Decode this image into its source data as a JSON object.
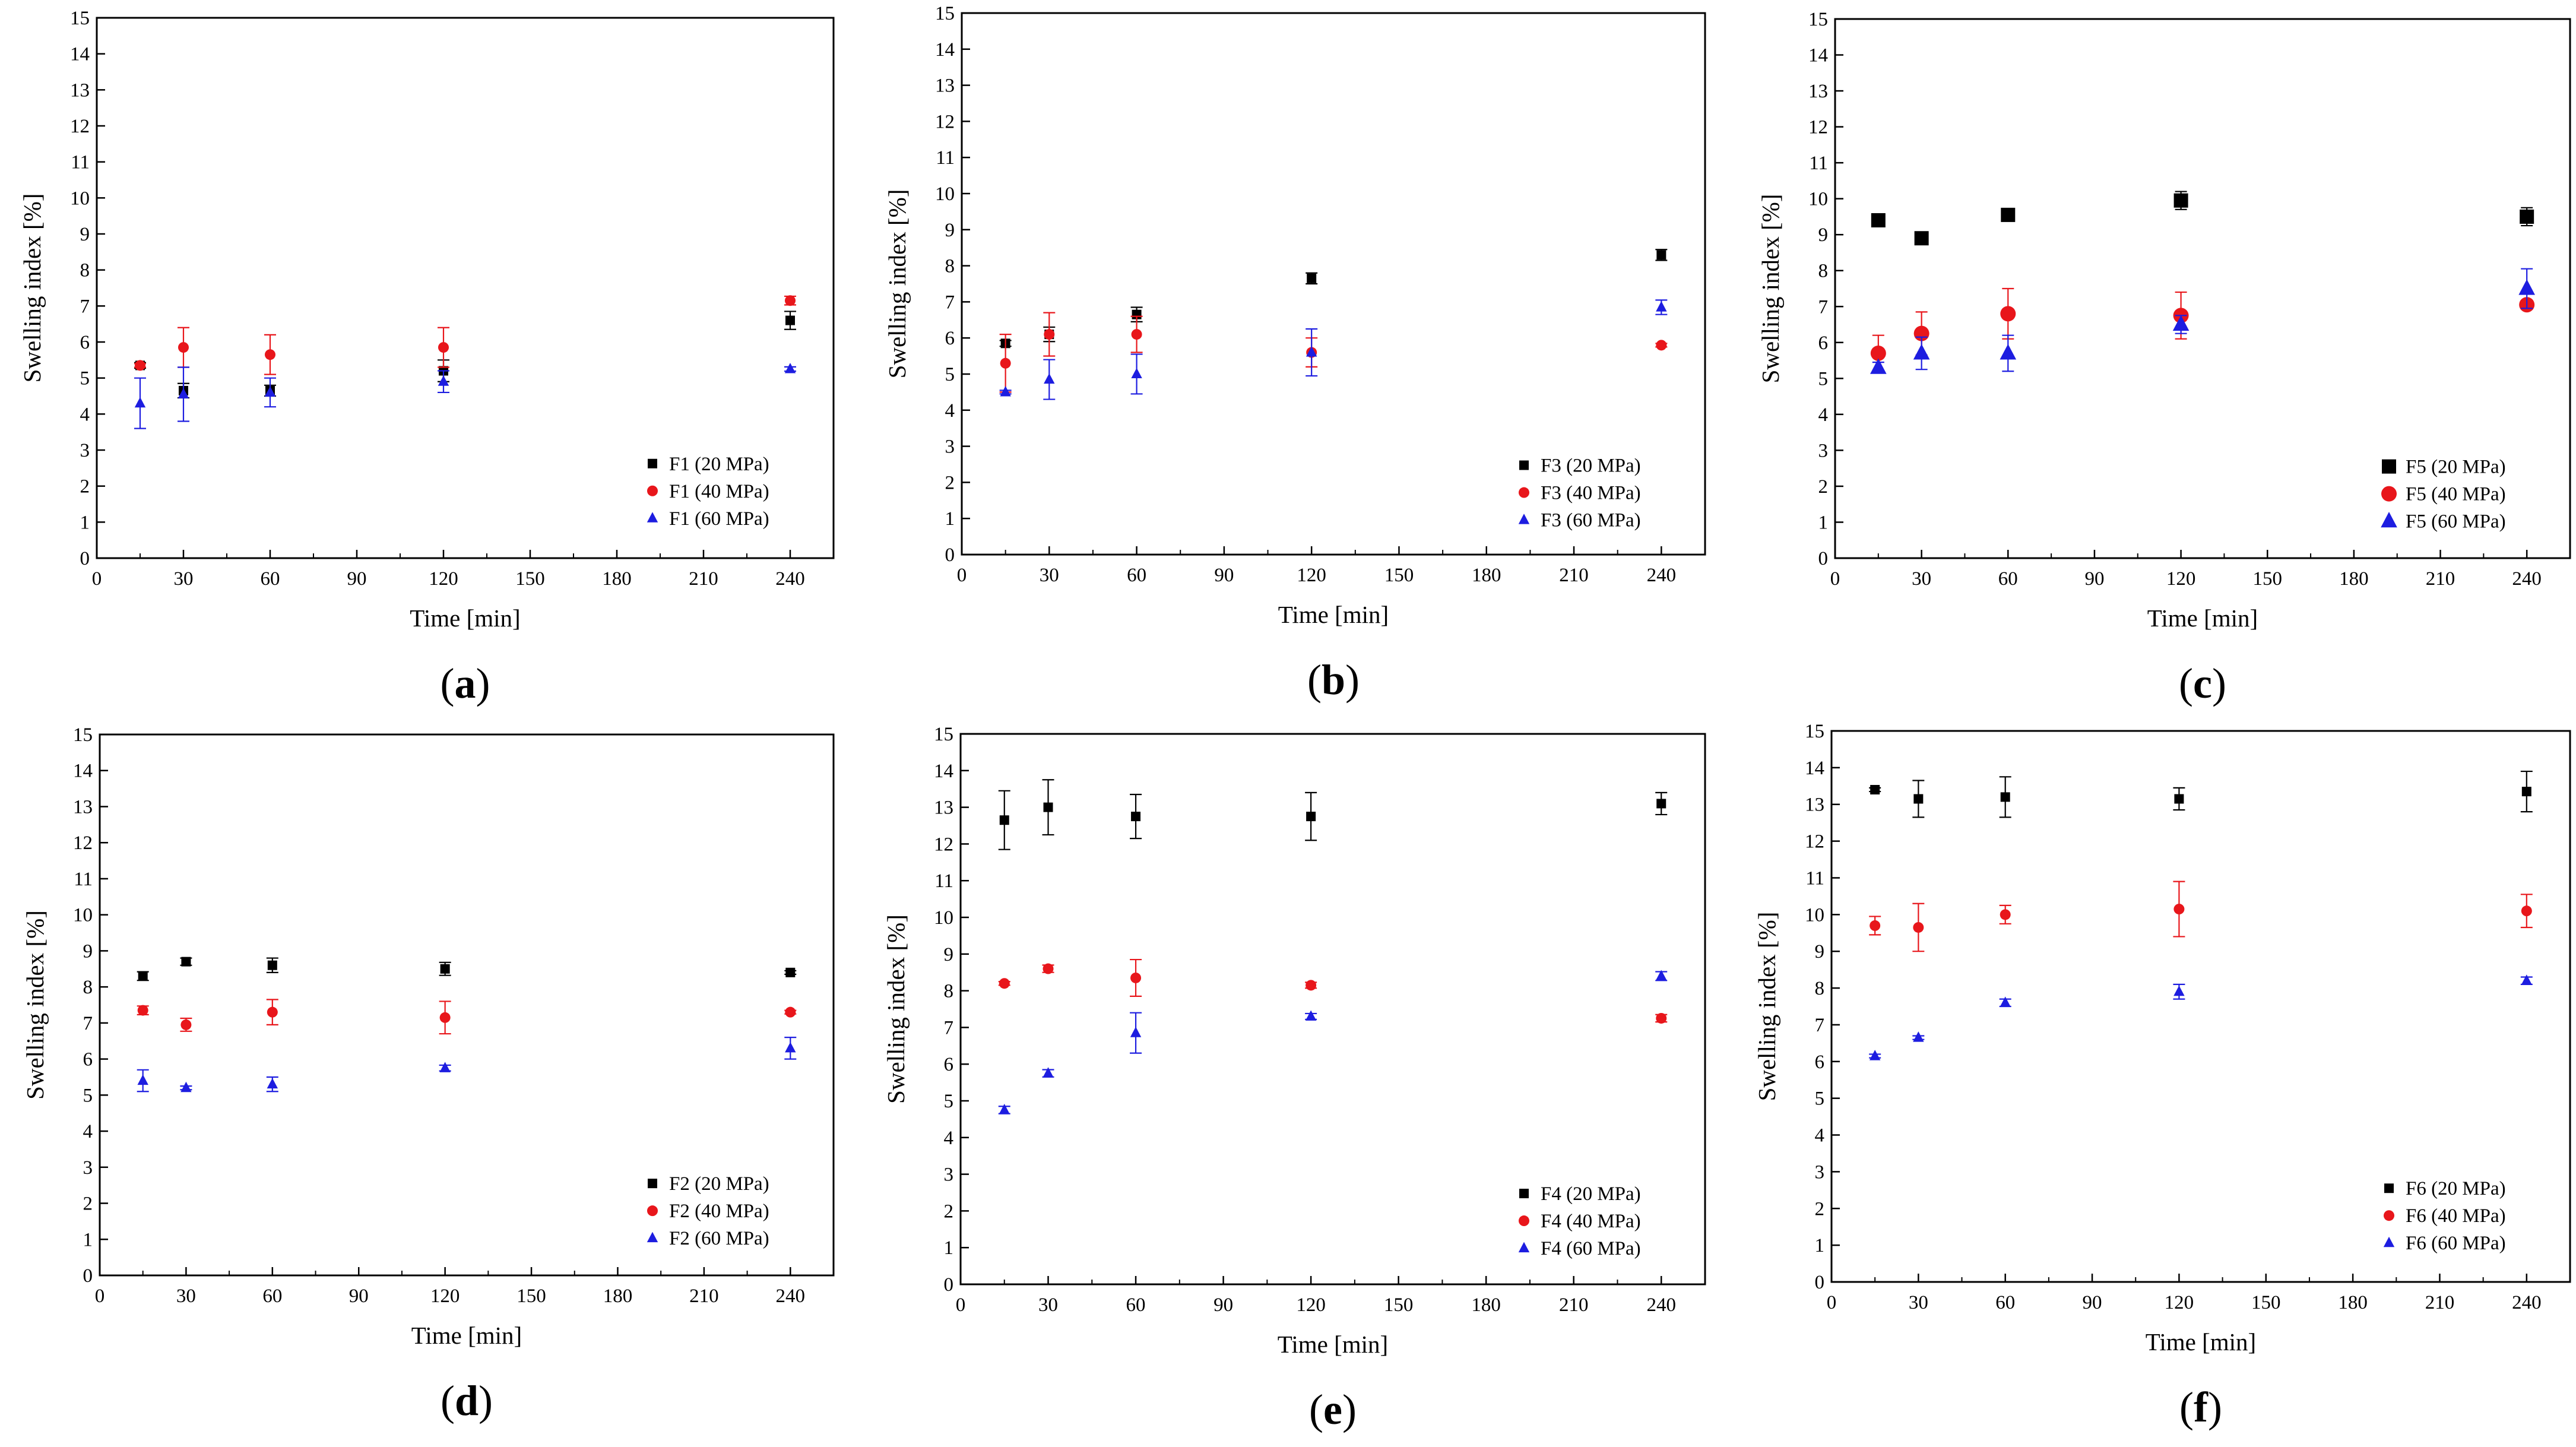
{
  "chart_data": [
    {
      "panel": "(a)",
      "panel_letter": "a",
      "type": "scatter",
      "xlabel": "Time [min]",
      "ylabel": "Swelling index [%]",
      "xlim": [
        0,
        255
      ],
      "ylim": [
        0,
        15
      ],
      "xticks": [
        0,
        30,
        60,
        90,
        120,
        150,
        180,
        210,
        240
      ],
      "yticks": [
        0,
        1,
        2,
        3,
        4,
        5,
        6,
        7,
        8,
        9,
        10,
        11,
        12,
        13,
        14,
        15
      ],
      "x": [
        15,
        30,
        60,
        120,
        240
      ],
      "series": [
        {
          "name": "F1 (20 MPa)",
          "marker": "square",
          "color": "#000000",
          "values": [
            5.35,
            4.65,
            4.65,
            5.2,
            6.6
          ],
          "errors": [
            0.08,
            0.2,
            0.15,
            0.3,
            0.25
          ]
        },
        {
          "name": "F1 (40 MPa)",
          "marker": "circle",
          "color": "#e8161b",
          "values": [
            5.35,
            5.85,
            5.65,
            5.85,
            7.15
          ],
          "errors": [
            0.05,
            0.55,
            0.55,
            0.55,
            0.12
          ]
        },
        {
          "name": "F1 (60 MPa)",
          "marker": "triangle",
          "color": "#1d1de0",
          "values": [
            4.3,
            4.55,
            4.6,
            4.9,
            5.25
          ],
          "errors": [
            0.7,
            0.75,
            0.4,
            0.3,
            0.06
          ]
        }
      ]
    },
    {
      "panel": "(b)",
      "panel_letter": "b",
      "type": "scatter",
      "xlabel": "Time [min]",
      "ylabel": "Swelling index [%]",
      "xlim": [
        0,
        255
      ],
      "ylim": [
        0,
        15
      ],
      "xticks": [
        0,
        30,
        60,
        90,
        120,
        150,
        180,
        210,
        240
      ],
      "yticks": [
        0,
        1,
        2,
        3,
        4,
        5,
        6,
        7,
        8,
        9,
        10,
        11,
        12,
        13,
        14,
        15
      ],
      "x": [
        15,
        30,
        60,
        120,
        240
      ],
      "series": [
        {
          "name": "F3 (20 MPa)",
          "marker": "square",
          "color": "#000000",
          "values": [
            5.85,
            6.1,
            6.65,
            7.65,
            8.3
          ],
          "errors": [
            0.08,
            0.2,
            0.2,
            0.15,
            0.15
          ]
        },
        {
          "name": "F3 (40 MPa)",
          "marker": "circle",
          "color": "#e8161b",
          "values": [
            5.3,
            6.1,
            6.1,
            5.6,
            5.8
          ],
          "errors": [
            0.8,
            0.6,
            0.5,
            0.4,
            0.05
          ]
        },
        {
          "name": "F3 (60 MPa)",
          "marker": "triangle",
          "color": "#1d1de0",
          "values": [
            4.5,
            4.85,
            5.0,
            5.6,
            6.85
          ],
          "errors": [
            0.05,
            0.55,
            0.55,
            0.65,
            0.2
          ]
        }
      ]
    },
    {
      "panel": "(c)",
      "panel_letter": "c",
      "type": "scatter",
      "xlabel": "Time [min]",
      "ylabel": "Swelling index [%]",
      "xlim": [
        0,
        255
      ],
      "ylim": [
        0,
        15
      ],
      "xticks": [
        0,
        30,
        60,
        90,
        120,
        150,
        180,
        210,
        240
      ],
      "yticks": [
        0,
        1,
        2,
        3,
        4,
        5,
        6,
        7,
        8,
        9,
        10,
        11,
        12,
        13,
        14,
        15
      ],
      "x": [
        15,
        30,
        60,
        120,
        240
      ],
      "series": [
        {
          "name": "F5 (20 MPa)",
          "marker": "square",
          "color": "#000000",
          "values": [
            9.4,
            8.9,
            9.55,
            9.95,
            9.5
          ],
          "errors": [
            0.05,
            0.05,
            0.05,
            0.25,
            0.25
          ]
        },
        {
          "name": "F5 (40 MPa)",
          "marker": "circle",
          "color": "#e8161b",
          "values": [
            5.7,
            6.25,
            6.8,
            6.75,
            7.05
          ],
          "errors": [
            0.5,
            0.6,
            0.7,
            0.65,
            0.12
          ]
        },
        {
          "name": "F5 (60 MPa)",
          "marker": "triangle",
          "color": "#1d1de0",
          "values": [
            5.3,
            5.7,
            5.7,
            6.5,
            7.5
          ],
          "errors": [
            0.15,
            0.45,
            0.5,
            0.25,
            0.55
          ]
        }
      ]
    },
    {
      "panel": "(d)",
      "panel_letter": "d",
      "type": "scatter",
      "xlabel": "Time [min]",
      "ylabel": "Swelling index [%]",
      "xlim": [
        0,
        255
      ],
      "ylim": [
        0,
        15
      ],
      "xticks": [
        0,
        30,
        60,
        90,
        120,
        150,
        180,
        210,
        240
      ],
      "yticks": [
        0,
        1,
        2,
        3,
        4,
        5,
        6,
        7,
        8,
        9,
        10,
        11,
        12,
        13,
        14,
        15
      ],
      "x": [
        15,
        30,
        60,
        120,
        240
      ],
      "series": [
        {
          "name": "F2 (20 MPa)",
          "marker": "square",
          "color": "#000000",
          "values": [
            8.3,
            8.7,
            8.6,
            8.5,
            8.4
          ],
          "errors": [
            0.12,
            0.1,
            0.2,
            0.18,
            0.05
          ]
        },
        {
          "name": "F2 (40 MPa)",
          "marker": "circle",
          "color": "#e8161b",
          "values": [
            7.35,
            6.95,
            7.3,
            7.15,
            7.3
          ],
          "errors": [
            0.12,
            0.18,
            0.35,
            0.45,
            0.05
          ]
        },
        {
          "name": "F2 (60 MPa)",
          "marker": "triangle",
          "color": "#1d1de0",
          "values": [
            5.4,
            5.2,
            5.3,
            5.75,
            6.3
          ],
          "errors": [
            0.3,
            0.05,
            0.2,
            0.08,
            0.3
          ]
        }
      ]
    },
    {
      "panel": "(e)",
      "panel_letter": "e",
      "type": "scatter",
      "xlabel": "Time [min]",
      "ylabel": "Swelling index [%]",
      "xlim": [
        0,
        255
      ],
      "ylim": [
        0,
        15
      ],
      "xticks": [
        0,
        30,
        60,
        90,
        120,
        150,
        180,
        210,
        240
      ],
      "yticks": [
        0,
        1,
        2,
        3,
        4,
        5,
        6,
        7,
        8,
        9,
        10,
        11,
        12,
        13,
        14,
        15
      ],
      "x": [
        15,
        30,
        60,
        120,
        240
      ],
      "series": [
        {
          "name": "F4 (20 MPa)",
          "marker": "square",
          "color": "#000000",
          "values": [
            12.65,
            13.0,
            12.75,
            12.75,
            13.1
          ],
          "errors": [
            0.8,
            0.75,
            0.6,
            0.65,
            0.3
          ]
        },
        {
          "name": "F4 (40 MPa)",
          "marker": "circle",
          "color": "#e8161b",
          "values": [
            8.2,
            8.6,
            8.35,
            8.15,
            7.25
          ],
          "errors": [
            0.05,
            0.1,
            0.5,
            0.08,
            0.1
          ]
        },
        {
          "name": "F4 (60 MPa)",
          "marker": "triangle",
          "color": "#1d1de0",
          "values": [
            4.75,
            5.75,
            6.85,
            7.3,
            8.4
          ],
          "errors": [
            0.1,
            0.1,
            0.55,
            0.08,
            0.12
          ]
        }
      ]
    },
    {
      "panel": "(f)",
      "panel_letter": "f",
      "type": "scatter",
      "xlabel": "Time [min]",
      "ylabel": "Swelling index [%]",
      "xlim": [
        0,
        255
      ],
      "ylim": [
        0,
        15
      ],
      "xticks": [
        0,
        30,
        60,
        90,
        120,
        150,
        180,
        210,
        240
      ],
      "yticks": [
        0,
        1,
        2,
        3,
        4,
        5,
        6,
        7,
        8,
        9,
        10,
        11,
        12,
        13,
        14,
        15
      ],
      "x": [
        15,
        30,
        60,
        120,
        240
      ],
      "series": [
        {
          "name": "F6 (20 MPa)",
          "marker": "square",
          "color": "#000000",
          "values": [
            13.4,
            13.15,
            13.2,
            13.15,
            13.35
          ],
          "errors": [
            0.05,
            0.5,
            0.55,
            0.3,
            0.55
          ]
        },
        {
          "name": "F6 (40 MPa)",
          "marker": "circle",
          "color": "#e8161b",
          "values": [
            9.7,
            9.65,
            10.0,
            10.15,
            10.1
          ],
          "errors": [
            0.25,
            0.65,
            0.25,
            0.75,
            0.45
          ]
        },
        {
          "name": "F6 (60 MPa)",
          "marker": "triangle",
          "color": "#1d1de0",
          "values": [
            6.15,
            6.65,
            7.6,
            7.9,
            8.2
          ],
          "errors": [
            0.05,
            0.05,
            0.1,
            0.2,
            0.1
          ]
        }
      ]
    }
  ]
}
